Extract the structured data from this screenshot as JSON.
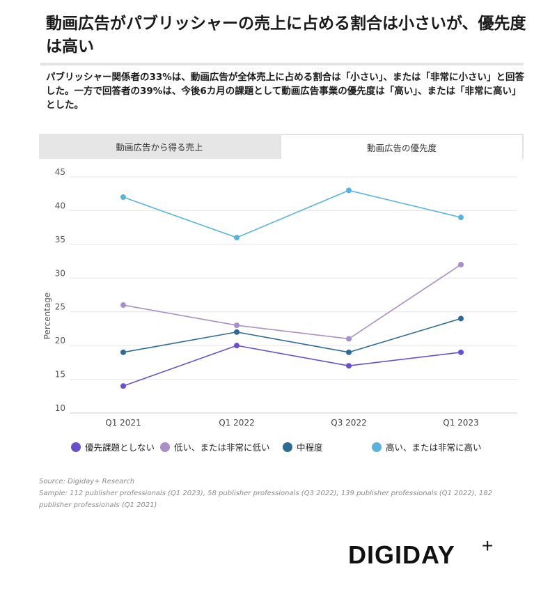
{
  "header": {
    "title": "動画広告がパブリッシャーの売上に占める割合は小さいが、優先度は高い",
    "subtitle": "パブリッシャー関係者の33%は、動画広告が全体売上に占める割合は「小さい」、または「非常に小さい」と回答した。一方で回答者の39%は、今後6カ月の課題として動画広告事業の優先度は「高い」、または「非常に高い」とした。"
  },
  "tabs": [
    {
      "label": "動画広告から得る売上",
      "active": false
    },
    {
      "label": "動画広告の優先度",
      "active": true
    }
  ],
  "chart_data": {
    "type": "line",
    "title": "",
    "xlabel": "",
    "ylabel": "Percentage",
    "ylim": [
      10,
      45
    ],
    "yticks": [
      10,
      15,
      20,
      25,
      30,
      35,
      40,
      45
    ],
    "categories": [
      "Q1 2021",
      "Q1 2022",
      "Q3 2022",
      "Q1 2023"
    ],
    "series": [
      {
        "name": "優先課題としない",
        "color": "#6a4fcc",
        "values": [
          14,
          20,
          17,
          19
        ]
      },
      {
        "name": "低い、または非常に低い",
        "color": "#a98ec8",
        "values": [
          26,
          23,
          21,
          32
        ]
      },
      {
        "name": "中程度",
        "color": "#2f6a94",
        "values": [
          19,
          22,
          19,
          24
        ]
      },
      {
        "name": "高い、または非常に高い",
        "color": "#5bb3dd",
        "values": [
          42,
          36,
          43,
          39
        ]
      }
    ]
  },
  "footer": {
    "source": "Source: Digiday+ Research",
    "sample": "Sample: 112 publisher professionals (Q1 2023), 58 publisher professionals (Q3 2022), 139 publisher professionals (Q1 2022), 182 publisher professionals (Q1 2021)",
    "logo_text": "DIGIDAY",
    "logo_plus": "+"
  }
}
